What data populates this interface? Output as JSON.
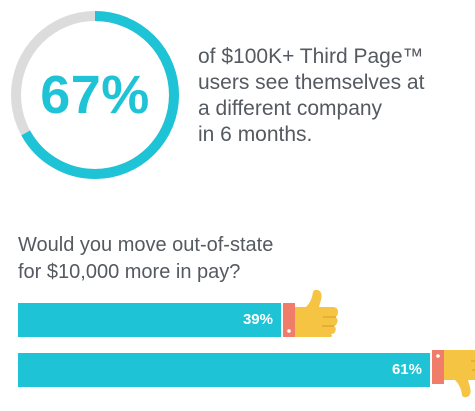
{
  "stat": {
    "value": "67%",
    "percent": 67,
    "description_lines": [
      "of $100K+ Third Page™",
      "users see themselves at",
      "a different company",
      "in 6 months."
    ]
  },
  "colors": {
    "accent": "#1fc3d6",
    "track": "#dcdcdc",
    "thumb_yellow": "#f6c443",
    "cuff": "#f07d6a",
    "text": "#555a60"
  },
  "chart_data": {
    "type": "bar",
    "title": "Would you move out-of-state for $10,000 more in pay?",
    "title_lines": [
      "Would you move out-of-state",
      "for $10,000 more in pay?"
    ],
    "categories": [
      "thumbs-up",
      "thumbs-down"
    ],
    "values": [
      39,
      61
    ],
    "labels": [
      "39%",
      "61%"
    ],
    "xlim": [
      0,
      100
    ]
  }
}
